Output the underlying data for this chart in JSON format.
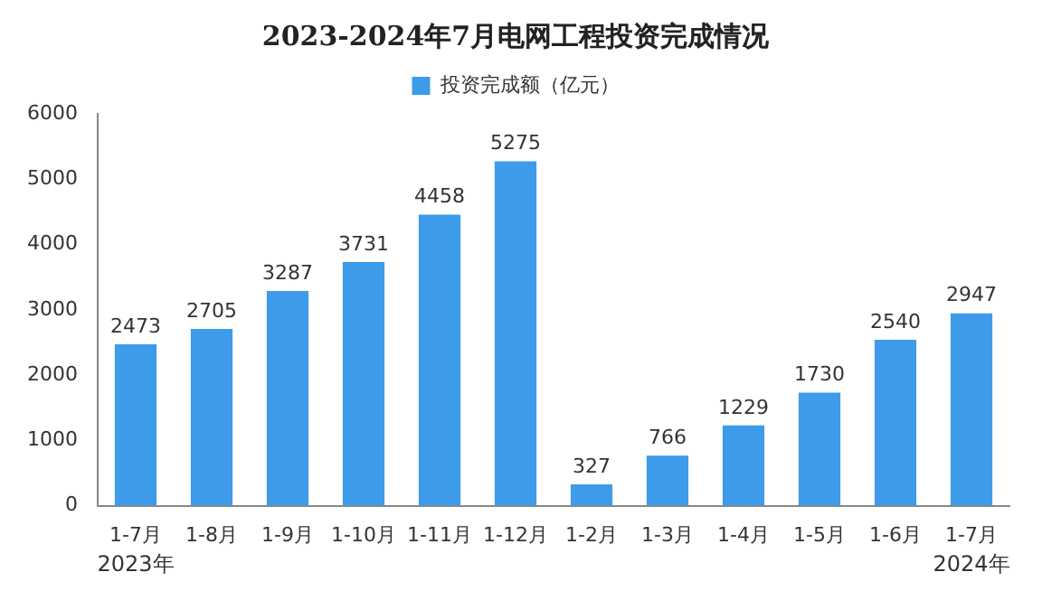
{
  "chart_data": {
    "type": "bar",
    "title": "2023-2024年7月电网工程投资完成情况",
    "categories": [
      "1-7月",
      "1-8月",
      "1-9月",
      "1-10月",
      "1-11月",
      "1-12月",
      "1-2月",
      "1-3月",
      "1-4月",
      "1-5月",
      "1-6月",
      "1-7月"
    ],
    "series": [
      {
        "name": "投资完成额（亿元）",
        "color": "#3d9be9",
        "values": [
          2473,
          2705,
          3287,
          3731,
          4458,
          5275,
          327,
          766,
          1229,
          1730,
          2540,
          2947
        ]
      }
    ],
    "ylim": [
      0,
      6000
    ],
    "yticks": [
      0,
      1000,
      2000,
      3000,
      4000,
      5000,
      6000
    ],
    "grid": false,
    "legend": "top",
    "data_labels": true,
    "annotations": [
      "2023年",
      "2024年"
    ]
  }
}
